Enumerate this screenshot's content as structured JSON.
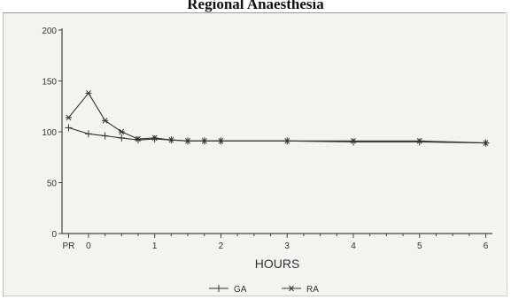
{
  "page": {
    "title": "Regional Anaesthesia"
  },
  "chart_data": {
    "type": "line",
    "title": "Regional Anaesthesia",
    "xlabel": "HOURS",
    "ylabel": "",
    "ylim": [
      0,
      200
    ],
    "xlim": [
      -0.4,
      6.1
    ],
    "y_ticks": [
      0,
      50,
      100,
      150,
      200
    ],
    "x_ticks": [
      {
        "label": "PR",
        "x": -0.3
      },
      {
        "label": "0",
        "x": 0
      },
      {
        "label": "1",
        "x": 1
      },
      {
        "label": "2",
        "x": 2
      },
      {
        "label": "3",
        "x": 3
      },
      {
        "label": "4",
        "x": 4
      },
      {
        "label": "5",
        "x": 5
      },
      {
        "label": "6",
        "x": 6
      }
    ],
    "minor_x_ticks": [
      0.25,
      0.5,
      0.75,
      1.25,
      1.5,
      1.75,
      2.25,
      2.5,
      2.75,
      3.25,
      3.5,
      3.75,
      4.25,
      4.5,
      4.75,
      5.25,
      5.5,
      5.75
    ],
    "legend_position": "bottom-center",
    "grid": false,
    "series": [
      {
        "name": "GA",
        "marker": "plus",
        "x": [
          -0.3,
          0,
          0.25,
          0.5,
          0.75,
          1,
          1.25,
          1.5,
          1.75,
          2,
          3,
          4,
          5,
          6
        ],
        "values": [
          104,
          98,
          96,
          94,
          92,
          93,
          92,
          91,
          91,
          91,
          91,
          90,
          90,
          89
        ]
      },
      {
        "name": "RA",
        "marker": "star",
        "x": [
          -0.3,
          0,
          0.25,
          0.5,
          0.75,
          1,
          1.25,
          1.5,
          1.75,
          2,
          3,
          4,
          5,
          6
        ],
        "values": [
          114,
          138,
          111,
          100,
          93,
          94,
          92,
          91,
          91,
          91,
          91,
          91,
          91,
          89
        ]
      }
    ]
  }
}
